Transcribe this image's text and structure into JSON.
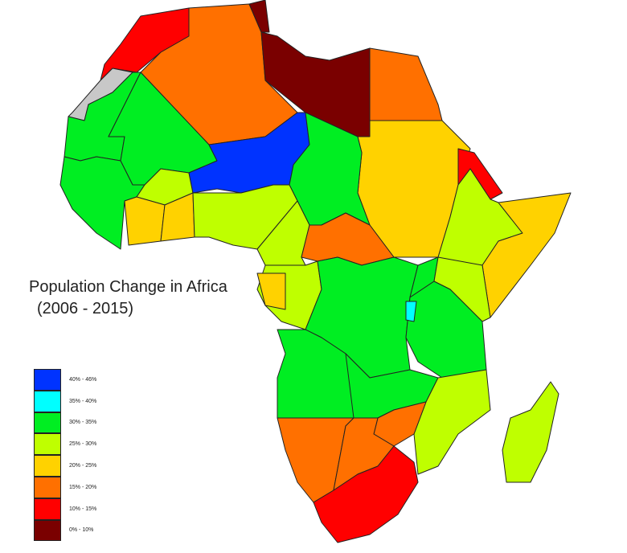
{
  "title": {
    "line1": "Population Change in Africa",
    "line2": "(2006 - 2015)"
  },
  "legend": [
    {
      "label": "40% - 46%",
      "color": "#0033ff"
    },
    {
      "label": "35% - 40%",
      "color": "#00ffff"
    },
    {
      "label": "30% - 35%",
      "color": "#00ee22"
    },
    {
      "label": "25% - 30%",
      "color": "#bfff00"
    },
    {
      "label": "20% - 25%",
      "color": "#ffd200"
    },
    {
      "label": "15% - 20%",
      "color": "#ff7000"
    },
    {
      "label": "10% - 15%",
      "color": "#ff0000"
    },
    {
      "label": "0% - 10%",
      "color": "#7a0000"
    }
  ]
}
